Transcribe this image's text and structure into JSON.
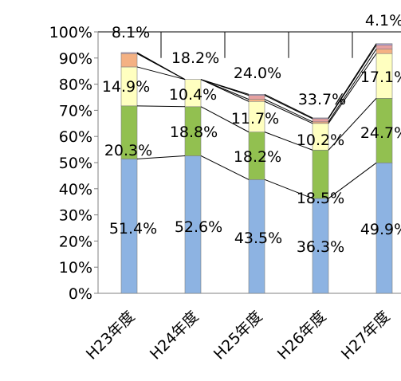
{
  "chart_data": {
    "type": "bar",
    "stacked": true,
    "percent_axis": true,
    "title": "",
    "xlabel": "",
    "ylabel": "",
    "ylim": [
      0,
      100
    ],
    "y_ticks": [
      "0%",
      "10%",
      "20%",
      "30%",
      "40%",
      "50%",
      "60%",
      "70%",
      "80%",
      "90%",
      "100%"
    ],
    "categories": [
      "H23年度",
      "H24年度",
      "H25年度",
      "H26年度",
      "H27年度"
    ],
    "series": [
      {
        "color": "#8DB3E2",
        "values": [
          51.4,
          52.6,
          43.5,
          36.3,
          49.9
        ]
      },
      {
        "color": "#92C050",
        "values": [
          20.3,
          18.8,
          18.2,
          18.5,
          24.7
        ]
      },
      {
        "color": "#FFFFC0",
        "values": [
          14.9,
          10.4,
          11.7,
          10.2,
          17.1
        ]
      },
      {
        "color": "#F4B183",
        "values": [
          5.1,
          0.0,
          0.8,
          0.6,
          1.7
        ]
      },
      {
        "color": "#E6A0A0",
        "values": [
          0.0,
          0.0,
          1.5,
          1.2,
          1.5
        ]
      },
      {
        "color": "#B0A0D0",
        "values": [
          0.4,
          0.0,
          0.4,
          0.3,
          0.6
        ]
      }
    ],
    "data_labels": [
      {
        "text": "51.4%"
      },
      {
        "text": "52.6%"
      },
      {
        "text": "43.5%"
      },
      {
        "text": "36.3%"
      },
      {
        "text": "49.9%"
      },
      {
        "text": "20.3%"
      },
      {
        "text": "18.8%"
      },
      {
        "text": "18.2%"
      },
      {
        "text": "18.5%"
      },
      {
        "text": "24.7%"
      },
      {
        "text": "14.9%"
      },
      {
        "text": "10.4%"
      },
      {
        "text": "11.7%"
      },
      {
        "text": "10.2%"
      },
      {
        "text": "17.1%"
      },
      {
        "text": "8.1%"
      },
      {
        "text": "18.2%"
      },
      {
        "text": "24.0%"
      },
      {
        "text": "33.7%"
      },
      {
        "text": "4.1%"
      }
    ]
  }
}
